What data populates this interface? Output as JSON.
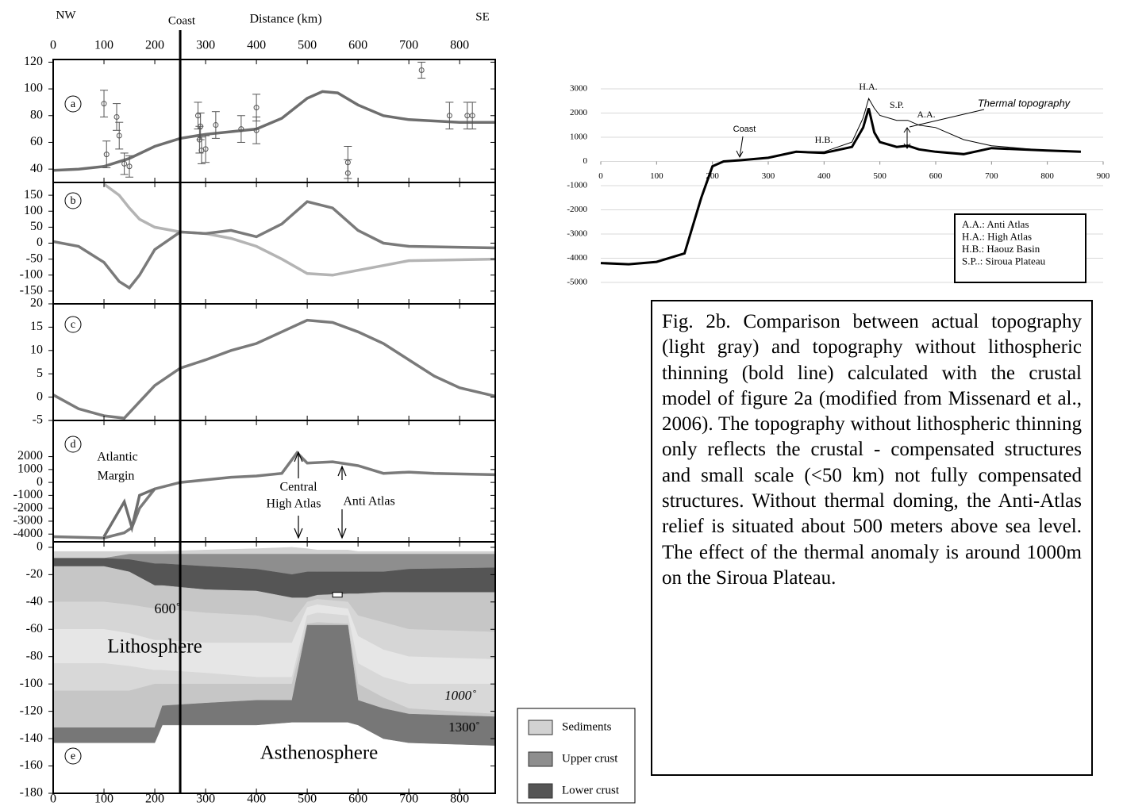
{
  "header": {
    "left": "NW",
    "coast": "Coast",
    "axis_title": "Distance (km)",
    "right": "SE"
  },
  "coast_x": 250,
  "chart_data": [
    {
      "type": "line",
      "label": "a",
      "xlim": [
        0,
        870
      ],
      "xticks": [
        0,
        100,
        200,
        300,
        400,
        500,
        600,
        700,
        800
      ],
      "xtick_side": "top",
      "ylim": [
        30,
        122
      ],
      "yticks": [
        40,
        60,
        80,
        100,
        120
      ],
      "x": [
        0,
        50,
        100,
        150,
        200,
        250,
        300,
        350,
        400,
        450,
        500,
        530,
        560,
        600,
        650,
        700,
        750,
        800,
        870
      ],
      "series": [
        {
          "color": "#6e6e6e",
          "values": [
            39,
            40,
            42,
            48,
            57,
            63,
            66,
            68,
            70,
            78,
            93,
            98,
            97,
            88,
            80,
            77,
            76,
            75,
            75
          ]
        },
        {
          "color": "#555555",
          "x": [
            100,
            105,
            125,
            130,
            140,
            150,
            285,
            288,
            290,
            292,
            300,
            320,
            370,
            400,
            400,
            580,
            580,
            725,
            780,
            815,
            825
          ],
          "values": [
            89,
            51,
            79,
            65,
            44,
            42,
            80,
            62,
            72,
            54,
            55,
            73,
            70,
            86,
            69,
            45,
            37,
            114,
            80,
            80,
            80
          ],
          "errors": [
            10,
            10,
            10,
            10,
            8,
            8,
            10,
            10,
            10,
            10,
            10,
            10,
            10,
            10,
            10,
            12,
            10,
            6,
            10,
            10,
            10
          ]
        }
      ]
    },
    {
      "type": "line",
      "label": "b",
      "xlim": [
        0,
        870
      ],
      "ylim": [
        -190,
        190
      ],
      "yticks": [
        150,
        100,
        50,
        0,
        -50,
        -100,
        -150
      ],
      "x": [
        0,
        50,
        100,
        130,
        150,
        170,
        200,
        250,
        300,
        350,
        400,
        450,
        500,
        550,
        600,
        650,
        700,
        870
      ],
      "series": [
        {
          "color": "#b4b4b4",
          "values": [
            null,
            null,
            185,
            150,
            110,
            75,
            50,
            35,
            30,
            15,
            -10,
            -50,
            -95,
            -100,
            -85,
            -70,
            -55,
            -50
          ]
        },
        {
          "color": "#7a7a7a",
          "values": [
            5,
            -10,
            -60,
            -120,
            -140,
            -100,
            -20,
            35,
            30,
            40,
            20,
            60,
            130,
            110,
            40,
            0,
            -10,
            -15
          ]
        }
      ]
    },
    {
      "type": "line",
      "label": "c",
      "xlim": [
        0,
        870
      ],
      "ylim": [
        -5,
        20
      ],
      "yticks": [
        20,
        15,
        10,
        5,
        0,
        -5
      ],
      "x": [
        0,
        50,
        100,
        140,
        170,
        200,
        250,
        300,
        350,
        400,
        450,
        500,
        550,
        600,
        650,
        700,
        750,
        800,
        870
      ],
      "series": [
        {
          "color": "#7a7a7a",
          "values": [
            0.5,
            -2.5,
            -4,
            -4.5,
            -1,
            2.5,
            6.2,
            8,
            10,
            11.5,
            14,
            16.5,
            16,
            14,
            11.5,
            8,
            4.5,
            2,
            0.2
          ]
        }
      ]
    },
    {
      "type": "line",
      "label": "d",
      "xlim": [
        0,
        870
      ],
      "ylim": [
        -4600,
        4800
      ],
      "yticks": [
        2000,
        1000,
        0,
        -1000,
        -2000,
        -3000,
        -4000
      ],
      "x": [
        0,
        100,
        140,
        155,
        170,
        200,
        250,
        300,
        350,
        400,
        450,
        480,
        500,
        550,
        600,
        650,
        700,
        750,
        870
      ],
      "series": [
        {
          "color": "#7a7a7a",
          "values": [
            -4200,
            -4300,
            -3900,
            -3500,
            -2000,
            -500,
            0,
            200,
            400,
            500,
            700,
            2300,
            1500,
            1600,
            1300,
            700,
            800,
            700,
            600
          ]
        },
        {
          "color": "#6e6e6e",
          "values": [
            null,
            -4200,
            -1500,
            -3500,
            -1000,
            -500,
            null,
            null,
            null,
            null,
            null,
            null,
            null,
            null,
            null,
            null,
            null,
            null,
            null
          ]
        }
      ],
      "annotations": [
        [
          "Atlantic",
          "Margin"
        ],
        [
          "Central",
          "High Atlas"
        ],
        [
          "Anti Atlas"
        ]
      ]
    },
    {
      "type": "section",
      "label": "e",
      "xlim": [
        0,
        870
      ],
      "xticks": [
        0,
        100,
        200,
        300,
        400,
        500,
        600,
        700,
        800
      ],
      "xtick_side": "bottom",
      "ylim": [
        -180,
        4
      ],
      "yticks": [
        0,
        -20,
        -40,
        -60,
        -80,
        -100,
        -120,
        -140,
        -160,
        -180
      ],
      "x": [
        0,
        100,
        150,
        200,
        215,
        300,
        400,
        470,
        500,
        520,
        580,
        600,
        650,
        700,
        870
      ],
      "layers": [
        {
          "name": "Sediments",
          "color": "#d2d2d2",
          "top": [
            -3,
            -3,
            -3,
            -3,
            -3,
            -2,
            -1,
            0,
            -1,
            -2,
            -2,
            -3,
            -3,
            -3,
            -3
          ],
          "bottom": [
            -8,
            -8,
            -5,
            -5,
            -5,
            -5,
            -5,
            -5,
            -5,
            -5,
            -5,
            -5,
            -5,
            -5,
            -5
          ]
        },
        {
          "name": "Upper crust",
          "color": "#8e8e8e",
          "top": [
            -8,
            -8,
            -5,
            -5,
            -5,
            -5,
            -5,
            -5,
            -5,
            -5,
            -5,
            -5,
            -5,
            -5,
            -5
          ],
          "bottom": [
            -8,
            -8,
            -9,
            -12,
            -12,
            -14,
            -16,
            -20,
            -18,
            -18,
            -18,
            -18,
            -18,
            -16,
            -15
          ]
        },
        {
          "name": "Lower crust",
          "color": "#555555",
          "top": [
            -8,
            -8,
            -9,
            -12,
            -12,
            -14,
            -16,
            -20,
            -18,
            -18,
            -18,
            -18,
            -18,
            -16,
            -15
          ],
          "bottom": [
            -14,
            -14,
            -18,
            -28,
            -28,
            -31,
            -32,
            -37,
            -37,
            -35,
            -34,
            -34,
            -33,
            -33,
            -33
          ]
        },
        {
          "color": "#c6c6c6",
          "top": [
            -14,
            -14,
            -18,
            -28,
            -28,
            -31,
            -32,
            -37,
            -37,
            -35,
            -34,
            -34,
            -33,
            -33,
            -33
          ],
          "bottom": [
            -40,
            -40,
            -42,
            -45,
            -45,
            -48,
            -50,
            -55,
            -40,
            -38,
            -40,
            -50,
            -55,
            -60,
            -62
          ]
        },
        {
          "color": "#d6d6d6",
          "top": [
            -40,
            -40,
            -42,
            -45,
            -45,
            -48,
            -50,
            -55,
            -40,
            -38,
            -40,
            -50,
            -55,
            -60,
            -62
          ],
          "bottom": [
            -60,
            -60,
            -63,
            -68,
            -68,
            -70,
            -70,
            -70,
            -44,
            -42,
            -45,
            -65,
            -75,
            -80,
            -82
          ]
        },
        {
          "color": "#e6e6e6",
          "top": [
            -60,
            -60,
            -63,
            -68,
            -68,
            -70,
            -70,
            -70,
            -44,
            -42,
            -45,
            -65,
            -75,
            -80,
            -82
          ],
          "bottom": [
            -85,
            -85,
            -87,
            -90,
            -90,
            -92,
            -95,
            -95,
            -50,
            -48,
            -50,
            -85,
            -95,
            -100,
            -100
          ]
        },
        {
          "color": "#d8d8d8",
          "top": [
            -85,
            -85,
            -87,
            -90,
            -90,
            -92,
            -95,
            -95,
            -50,
            -48,
            -50,
            -85,
            -95,
            -100,
            -100
          ],
          "bottom": [
            -105,
            -105,
            -105,
            -100,
            -100,
            -100,
            -100,
            -100,
            -56,
            -55,
            -56,
            -100,
            -110,
            -118,
            -122
          ]
        },
        {
          "color": "#c6c6c6",
          "top": [
            -105,
            -105,
            -105,
            -100,
            -100,
            -100,
            -100,
            -100,
            -56,
            -55,
            -56,
            -100,
            -110,
            -118,
            -122
          ],
          "bottom": [
            -132,
            -132,
            -132,
            -132,
            -116,
            -114,
            -112,
            -112,
            -57,
            -57,
            -57,
            -112,
            -118,
            -122,
            -124
          ]
        },
        {
          "color": "#777777",
          "top": [
            -132,
            -132,
            -132,
            -132,
            -116,
            -114,
            -112,
            -112,
            -57,
            -57,
            -57,
            -112,
            -118,
            -122,
            -124
          ],
          "bottom": [
            -143,
            -143,
            -143,
            -143,
            -130,
            -130,
            -130,
            -128,
            -128,
            -128,
            -128,
            -130,
            -140,
            -143,
            -145
          ]
        }
      ],
      "annotations": [
        "600˚",
        "Lithosphere",
        "1000˚",
        "1300˚",
        "Asthenosphere"
      ]
    },
    {
      "type": "line",
      "xlim": [
        0,
        900
      ],
      "xticks": [
        0,
        100,
        200,
        300,
        400,
        500,
        600,
        700,
        800,
        900
      ],
      "ylim": [
        -5000,
        3000
      ],
      "yticks": [
        3000,
        2000,
        1000,
        0,
        -1000,
        -2000,
        -3000,
        -4000,
        -5000
      ],
      "grid": true,
      "x": [
        0,
        50,
        100,
        150,
        180,
        200,
        220,
        250,
        300,
        350,
        400,
        450,
        470,
        480,
        490,
        500,
        530,
        550,
        570,
        600,
        650,
        700,
        750,
        800,
        860
      ],
      "series": [
        {
          "color": "#000000",
          "width": 1,
          "values": [
            -4200,
            -4250,
            -4150,
            -3800,
            -1500,
            -200,
            0,
            50,
            150,
            400,
            400,
            800,
            1800,
            2600,
            2200,
            1900,
            1700,
            1700,
            1500,
            1400,
            900,
            650,
            550,
            450,
            400
          ]
        },
        {
          "color": "#000000",
          "width": 3,
          "values": [
            -4200,
            -4250,
            -4150,
            -3800,
            -1500,
            -200,
            0,
            50,
            150,
            400,
            350,
            600,
            1400,
            2200,
            1200,
            800,
            600,
            650,
            500,
            400,
            300,
            550,
            500,
            450,
            400
          ]
        }
      ],
      "annotations": [
        "Coast",
        "H.B.",
        "H.A.",
        "S.P.",
        "A.A.",
        "Thermal topography"
      ],
      "notes": [
        "A.A.: Anti Atlas",
        "H.A.: High Atlas",
        "H.B.: Haouz Basin",
        "S.P..: Siroua Plateau"
      ]
    }
  ],
  "caption": "Fig. 2b. Comparison between actual topography (light gray) and topography without lithospheric thinning (bold line) calculated with the crustal model of figure 2a (modified from Missenard et al., 2006). The topography without lithospheric thinning only reflects the crustal - compensated structures and small scale (<50 km) not fully compensated structures. Without thermal doming, the Anti-Atlas relief is situated about 500 meters above sea level. The effect of the thermal anomaly is around 1000m on the Siroua Plateau."
}
